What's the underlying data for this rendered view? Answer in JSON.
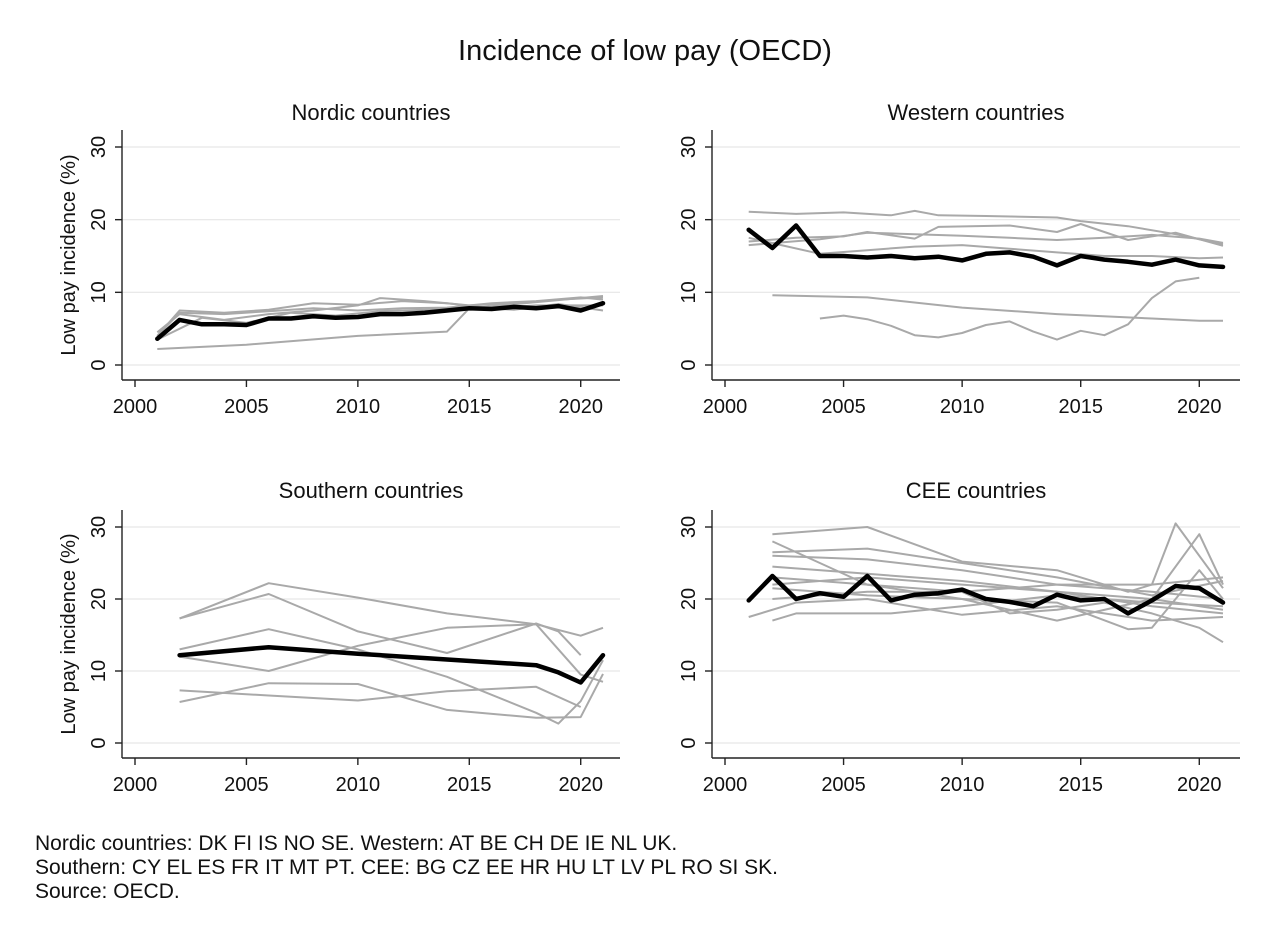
{
  "title": "Incidence of low pay (OECD)",
  "notes": [
    "Nordic countries: DK FI IS NO SE. Western: AT BE CH DE IE NL UK.",
    "Southern: CY EL ES FR IT MT PT. CEE: BG CZ EE HR HU LT LV PL RO SI SK.",
    "Source: OECD."
  ],
  "colors": {
    "country": "#a9a9a9",
    "average": "#000000",
    "grid": "#e6e6e6"
  },
  "chart_data": [
    {
      "type": "line",
      "title": "Nordic countries",
      "xlabel": "",
      "ylabel": "Low pay incidence (%)",
      "xlim": [
        2000,
        2021
      ],
      "ylim": [
        0,
        30
      ],
      "xticks": [
        2000,
        2005,
        2010,
        2015,
        2020
      ],
      "yticks": [
        0,
        10,
        20,
        30
      ],
      "grid": true,
      "country_series": [
        {
          "x": [
            2001,
            2005,
            2010,
            2014,
            2015,
            2021
          ],
          "values": [
            2.2,
            2.8,
            4.0,
            4.6,
            7.8,
            9.5
          ]
        },
        {
          "x": [
            2001,
            2002,
            2004,
            2006,
            2008,
            2010,
            2012,
            2014,
            2016,
            2018,
            2021
          ],
          "values": [
            4.0,
            7.5,
            7.2,
            7.6,
            8.5,
            8.3,
            8.8,
            8.5,
            7.8,
            8.2,
            8.2
          ]
        },
        {
          "x": [
            2001,
            2002,
            2004,
            2006,
            2008,
            2010,
            2011,
            2013,
            2015,
            2017,
            2019,
            2021
          ],
          "values": [
            4.5,
            7.0,
            6.2,
            7.0,
            7.5,
            8.2,
            9.2,
            8.8,
            8.2,
            8.5,
            9.0,
            9.3
          ]
        },
        {
          "x": [
            2001,
            2003,
            2005,
            2007,
            2009,
            2011,
            2013,
            2015,
            2017,
            2019,
            2021
          ],
          "values": [
            3.5,
            6.5,
            5.8,
            7.2,
            6.8,
            7.4,
            7.6,
            8.0,
            7.6,
            8.4,
            7.5
          ]
        },
        {
          "x": [
            2001,
            2002,
            2004,
            2006,
            2008,
            2010,
            2012,
            2014,
            2016,
            2018,
            2020,
            2021
          ],
          "values": [
            4.0,
            7.2,
            7.0,
            7.4,
            7.8,
            7.5,
            7.8,
            7.9,
            8.5,
            8.8,
            9.3,
            9.0
          ]
        }
      ],
      "average": {
        "x": [
          2001,
          2002,
          2003,
          2004,
          2005,
          2006,
          2007,
          2008,
          2009,
          2010,
          2011,
          2012,
          2013,
          2014,
          2015,
          2016,
          2017,
          2018,
          2019,
          2020,
          2021
        ],
        "values": [
          3.6,
          6.2,
          5.6,
          5.6,
          5.5,
          6.4,
          6.4,
          6.7,
          6.5,
          6.6,
          7.0,
          7.0,
          7.2,
          7.5,
          7.8,
          7.7,
          8.0,
          7.8,
          8.1,
          7.5,
          8.5
        ]
      }
    },
    {
      "type": "line",
      "title": "Western countries",
      "xlabel": "",
      "ylabel": "",
      "xlim": [
        2000,
        2021
      ],
      "ylim": [
        0,
        30
      ],
      "xticks": [
        2000,
        2005,
        2010,
        2015,
        2020
      ],
      "yticks": [
        0,
        10,
        20,
        30
      ],
      "grid": true,
      "country_series": [
        {
          "x": [
            2001,
            2003,
            2005,
            2007,
            2008,
            2009,
            2011,
            2014,
            2015,
            2017,
            2019,
            2021
          ],
          "values": [
            21.1,
            20.8,
            21.0,
            20.6,
            21.2,
            20.6,
            20.5,
            20.3,
            19.8,
            19.1,
            18.0,
            16.6
          ]
        },
        {
          "x": [
            2001,
            2003,
            2005,
            2006,
            2008,
            2009,
            2012,
            2014,
            2015,
            2017,
            2019,
            2021
          ],
          "values": [
            17.0,
            17.5,
            17.7,
            18.3,
            17.4,
            19.0,
            19.2,
            18.3,
            19.4,
            17.2,
            18.2,
            16.4
          ]
        },
        {
          "x": [
            2001,
            2004,
            2006,
            2008,
            2010,
            2012,
            2014,
            2016,
            2018,
            2020,
            2021
          ],
          "values": [
            16.5,
            17.3,
            18.2,
            18.0,
            17.8,
            17.5,
            17.2,
            17.5,
            17.9,
            17.4,
            16.8
          ]
        },
        {
          "x": [
            2001,
            2004,
            2006,
            2008,
            2010,
            2012,
            2014,
            2016,
            2018,
            2020,
            2021
          ],
          "values": [
            17.5,
            15.3,
            15.8,
            16.3,
            16.5,
            16.0,
            15.5,
            15.0,
            15.0,
            14.7,
            14.8
          ]
        },
        {
          "x": [
            2002,
            2006,
            2010,
            2014,
            2018,
            2020,
            2021
          ],
          "values": [
            9.6,
            9.3,
            7.9,
            7.0,
            6.4,
            6.1,
            6.1
          ]
        },
        {
          "x": [
            2004,
            2005,
            2006,
            2007,
            2008,
            2009,
            2010,
            2011,
            2012,
            2013,
            2014,
            2015,
            2016,
            2017,
            2018,
            2019,
            2020
          ],
          "values": [
            6.4,
            6.8,
            6.3,
            5.4,
            4.1,
            3.8,
            4.4,
            5.5,
            6.0,
            4.6,
            3.5,
            4.7,
            4.1,
            5.6,
            9.2,
            11.5,
            12.0
          ]
        }
      ],
      "average": {
        "x": [
          2001,
          2002,
          2003,
          2004,
          2005,
          2006,
          2007,
          2008,
          2009,
          2010,
          2011,
          2012,
          2013,
          2014,
          2015,
          2016,
          2017,
          2018,
          2019,
          2020,
          2021
        ],
        "values": [
          18.6,
          16.1,
          19.2,
          15.0,
          15.0,
          14.8,
          15.0,
          14.7,
          14.9,
          14.4,
          15.3,
          15.5,
          14.9,
          13.7,
          15.0,
          14.5,
          14.2,
          13.8,
          14.5,
          13.7,
          13.5
        ]
      }
    },
    {
      "type": "line",
      "title": "Southern countries",
      "xlabel": "",
      "ylabel": "Low pay incidence (%)",
      "xlim": [
        2000,
        2021
      ],
      "ylim": [
        0,
        30
      ],
      "xticks": [
        2000,
        2005,
        2010,
        2015,
        2020
      ],
      "yticks": [
        0,
        10,
        20,
        30
      ],
      "grid": true,
      "country_series": [
        {
          "x": [
            2002,
            2006,
            2010,
            2014,
            2018,
            2020,
            2021
          ],
          "values": [
            17.3,
            22.2,
            20.2,
            18.0,
            16.5,
            14.9,
            16.0
          ]
        },
        {
          "x": [
            2002,
            2006,
            2010,
            2014,
            2018,
            2019,
            2020
          ],
          "values": [
            17.3,
            20.7,
            15.5,
            12.5,
            16.6,
            15.5,
            12.2
          ]
        },
        {
          "x": [
            2002,
            2006,
            2010,
            2014,
            2018,
            2019,
            2020,
            2021
          ],
          "values": [
            13.0,
            15.8,
            13.0,
            9.2,
            4.2,
            2.7,
            5.8,
            11.5
          ]
        },
        {
          "x": [
            2002,
            2006,
            2010,
            2014,
            2018,
            2020,
            2021
          ],
          "values": [
            12.0,
            10.0,
            13.5,
            16.0,
            16.5,
            9.5,
            8.5
          ]
        },
        {
          "x": [
            2002,
            2006,
            2010,
            2014,
            2018,
            2020
          ],
          "values": [
            7.3,
            6.6,
            5.9,
            7.2,
            7.8,
            5.0
          ]
        },
        {
          "x": [
            2002,
            2006,
            2010,
            2014,
            2018,
            2020,
            2021
          ],
          "values": [
            5.7,
            8.3,
            8.2,
            4.6,
            3.5,
            3.6,
            9.6
          ]
        }
      ],
      "average": {
        "x": [
          2002,
          2006,
          2010,
          2014,
          2018,
          2019,
          2020,
          2021
        ],
        "values": [
          12.2,
          13.3,
          12.4,
          11.6,
          10.8,
          9.8,
          8.4,
          12.2
        ]
      }
    },
    {
      "type": "line",
      "title": "CEE countries",
      "xlabel": "",
      "ylabel": "",
      "xlim": [
        2000,
        2021
      ],
      "ylim": [
        0,
        30
      ],
      "xticks": [
        2000,
        2005,
        2010,
        2015,
        2020
      ],
      "yticks": [
        0,
        10,
        20,
        30
      ],
      "grid": true,
      "country_series": [
        {
          "x": [
            2002,
            2006,
            2010,
            2014,
            2017,
            2018,
            2019,
            2021
          ],
          "values": [
            29.0,
            30.0,
            25.2,
            24.0,
            21.0,
            22.0,
            30.5,
            21.5
          ]
        },
        {
          "x": [
            2002,
            2006,
            2010,
            2014,
            2018,
            2020,
            2021
          ],
          "values": [
            28.0,
            22.0,
            20.0,
            17.0,
            20.0,
            29.0,
            22.0
          ]
        },
        {
          "x": [
            2002,
            2006,
            2010,
            2014,
            2018,
            2021
          ],
          "values": [
            26.5,
            27.0,
            25.0,
            23.0,
            20.5,
            22.5
          ]
        },
        {
          "x": [
            2002,
            2006,
            2010,
            2014,
            2018,
            2021
          ],
          "values": [
            26.0,
            25.5,
            24.0,
            22.0,
            21.0,
            20.0
          ]
        },
        {
          "x": [
            2002,
            2006,
            2010,
            2014,
            2018,
            2021
          ],
          "values": [
            24.5,
            23.5,
            22.5,
            21.0,
            20.0,
            18.5
          ]
        },
        {
          "x": [
            2002,
            2006,
            2010,
            2012,
            2014,
            2016,
            2018,
            2020,
            2021
          ],
          "values": [
            23.0,
            22.0,
            21.0,
            18.0,
            18.5,
            19.5,
            18.0,
            16.0,
            14.0
          ]
        },
        {
          "x": [
            2002,
            2006,
            2010,
            2014,
            2018,
            2021
          ],
          "values": [
            22.0,
            23.0,
            22.0,
            21.0,
            19.0,
            18.0
          ]
        },
        {
          "x": [
            2002,
            2006,
            2010,
            2014,
            2017,
            2018,
            2020,
            2021
          ],
          "values": [
            21.5,
            20.5,
            20.0,
            19.5,
            15.8,
            16.0,
            24.0,
            20.0
          ]
        },
        {
          "x": [
            2002,
            2006,
            2010,
            2014,
            2018,
            2021
          ],
          "values": [
            20.0,
            21.0,
            21.0,
            22.0,
            22.0,
            23.0
          ]
        },
        {
          "x": [
            2001,
            2003,
            2006,
            2010,
            2014,
            2018,
            2021
          ],
          "values": [
            17.5,
            19.5,
            20.0,
            17.8,
            19.0,
            17.0,
            17.5
          ]
        },
        {
          "x": [
            2002,
            2003,
            2007,
            2010,
            2014,
            2018,
            2021
          ],
          "values": [
            17.0,
            18.0,
            18.0,
            19.0,
            20.5,
            19.5,
            19.0
          ]
        }
      ],
      "average": {
        "x": [
          2001,
          2002,
          2003,
          2004,
          2005,
          2006,
          2007,
          2008,
          2009,
          2010,
          2011,
          2012,
          2013,
          2014,
          2015,
          2016,
          2017,
          2018,
          2019,
          2020,
          2021
        ],
        "values": [
          19.8,
          23.2,
          20.0,
          20.8,
          20.3,
          23.2,
          19.8,
          20.6,
          20.8,
          21.3,
          20.0,
          19.6,
          19.0,
          20.6,
          19.8,
          20.0,
          18.0,
          19.8,
          21.8,
          21.5,
          19.5
        ]
      }
    }
  ]
}
